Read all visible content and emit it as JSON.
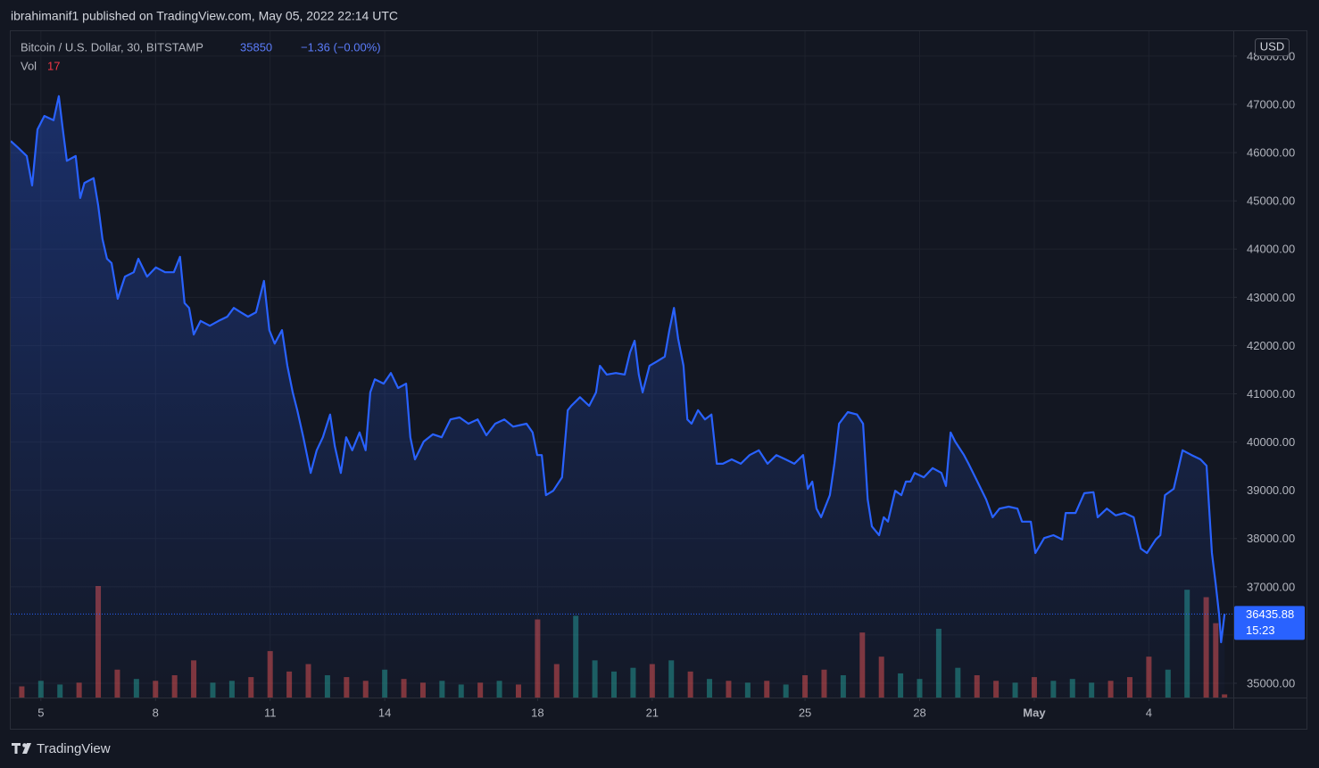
{
  "published": "ibrahimanif1 published on TradingView.com, May 05, 2022 22:14 UTC",
  "brand": "TradingView",
  "chart_data": {
    "type": "area",
    "title": "Bitcoin / U.S. Dollar, 30, BITSTAMP",
    "change": "−1.36 (−0.00%)",
    "countdown": "15:23",
    "currency": "USD",
    "grid": true,
    "xlim": [
      4.21,
      36.21
    ],
    "xticks": [
      5,
      8,
      11,
      14,
      18,
      21,
      25,
      28,
      {
        "value": 31,
        "label": "May"
      },
      {
        "value": 34,
        "label": "4"
      }
    ],
    "ylim": [
      34704,
      48516
    ],
    "yticks": [
      {
        "value": 35000,
        "label": "35000.00"
      },
      {
        "value": 36000,
        "label": "36000.00"
      },
      {
        "value": 37000,
        "label": "37000.00"
      },
      {
        "value": 38000,
        "label": "38000.00"
      },
      {
        "value": 39000,
        "label": "39000.00"
      },
      {
        "value": 40000,
        "label": "40000.00"
      },
      {
        "value": 41000,
        "label": "41000.00"
      },
      {
        "value": 42000,
        "label": "42000.00"
      },
      {
        "value": 43000,
        "label": "43000.00"
      },
      {
        "value": 44000,
        "label": "44000.00"
      },
      {
        "value": 45000,
        "label": "45000.00"
      },
      {
        "value": 46000,
        "label": "46000.00"
      },
      {
        "value": 47000,
        "label": "47000.00"
      },
      {
        "value": 48000,
        "label": "48000.00"
      }
    ],
    "x": [
      4.21,
      4.39,
      4.63,
      4.77,
      4.91,
      5.09,
      5.33,
      5.47,
      5.56,
      5.68,
      5.91,
      6.03,
      6.14,
      6.38,
      6.5,
      6.61,
      6.73,
      6.85,
      7.01,
      7.2,
      7.43,
      7.55,
      7.78,
      8.01,
      8.25,
      8.48,
      8.64,
      8.76,
      8.88,
      9.0,
      9.18,
      9.42,
      9.65,
      9.88,
      10.05,
      10.23,
      10.42,
      10.63,
      10.84,
      10.98,
      11.12,
      11.31,
      11.45,
      11.59,
      11.71,
      11.87,
      12.06,
      12.22,
      12.38,
      12.57,
      12.69,
      12.85,
      12.99,
      13.15,
      13.34,
      13.5,
      13.62,
      13.74,
      13.97,
      14.16,
      14.35,
      14.56,
      14.67,
      14.79,
      15.02,
      15.26,
      15.49,
      15.72,
      15.96,
      16.19,
      16.43,
      16.66,
      16.89,
      17.13,
      17.36,
      17.71,
      17.87,
      17.99,
      18.11,
      18.22,
      18.41,
      18.64,
      18.79,
      18.88,
      19.11,
      19.35,
      19.53,
      19.63,
      19.81,
      20.05,
      20.28,
      20.42,
      20.54,
      20.65,
      20.75,
      20.93,
      21.12,
      21.33,
      21.45,
      21.57,
      21.68,
      21.82,
      21.92,
      22.03,
      22.2,
      22.38,
      22.55,
      22.69,
      22.85,
      23.08,
      23.32,
      23.55,
      23.79,
      24.02,
      24.25,
      24.49,
      24.72,
      24.95,
      25.07,
      25.19,
      25.3,
      25.42,
      25.65,
      25.77,
      25.89,
      26.12,
      26.36,
      26.52,
      26.64,
      26.75,
      26.94,
      27.06,
      27.17,
      27.36,
      27.52,
      27.64,
      27.76,
      27.87,
      28.11,
      28.34,
      28.57,
      28.69,
      28.81,
      28.93,
      29.16,
      29.28,
      29.51,
      29.74,
      29.91,
      30.09,
      30.33,
      30.56,
      30.68,
      30.91,
      31.03,
      31.26,
      31.5,
      31.73,
      31.82,
      31.96,
      32.08,
      32.31,
      32.55,
      32.66,
      32.9,
      33.13,
      33.36,
      33.6,
      33.79,
      33.95,
      34.18,
      34.3,
      34.42,
      34.65,
      34.88,
      35.12,
      35.35,
      35.51,
      35.65,
      35.75,
      35.84,
      35.89,
      35.98
    ],
    "series": [
      {
        "color": "#2962ff",
        "values": [
          46240,
          46110,
          45930,
          45320,
          46480,
          46760,
          46670,
          47170,
          46570,
          45830,
          45930,
          45060,
          45370,
          45470,
          44910,
          44210,
          43800,
          43710,
          42970,
          43430,
          43520,
          43800,
          43430,
          43620,
          43520,
          43520,
          43840,
          42880,
          42780,
          42230,
          42510,
          42410,
          42510,
          42600,
          42780,
          42690,
          42600,
          42690,
          43340,
          42320,
          42040,
          42320,
          41580,
          41030,
          40660,
          40100,
          39360,
          39830,
          40100,
          40570,
          39920,
          39360,
          40100,
          39830,
          40200,
          39830,
          41030,
          41300,
          41210,
          41430,
          41120,
          41210,
          40100,
          39640,
          40010,
          40160,
          40100,
          40470,
          40510,
          40380,
          40470,
          40140,
          40380,
          40470,
          40320,
          40380,
          40200,
          39730,
          39730,
          38900,
          38990,
          39270,
          40660,
          40750,
          40930,
          40750,
          41030,
          41580,
          41400,
          41430,
          41400,
          41860,
          42100,
          41400,
          41030,
          41580,
          41670,
          41770,
          42320,
          42780,
          42140,
          41580,
          40470,
          40380,
          40660,
          40470,
          40570,
          39550,
          39550,
          39640,
          39550,
          39730,
          39830,
          39550,
          39730,
          39640,
          39550,
          39730,
          39030,
          39180,
          38620,
          38440,
          38900,
          39550,
          40380,
          40620,
          40570,
          40380,
          38810,
          38250,
          38070,
          38440,
          38350,
          38990,
          38900,
          39180,
          39180,
          39360,
          39270,
          39460,
          39360,
          39090,
          40200,
          40010,
          39730,
          39550,
          39180,
          38810,
          38440,
          38620,
          38660,
          38620,
          38350,
          38350,
          37700,
          38010,
          38070,
          37980,
          38530,
          38530,
          38530,
          38940,
          38960,
          38440,
          38620,
          38480,
          38530,
          38440,
          37790,
          37700,
          37980,
          38070,
          38900,
          39030,
          39830,
          39730,
          39640,
          39510,
          37700,
          37050,
          36400,
          35850,
          36435.88
        ]
      }
    ],
    "volume": {
      "name": "Vol",
      "up_color": "#26a69a",
      "down_color": "#ef5350",
      "x": [
        4.5,
        5.0,
        5.5,
        6.0,
        6.5,
        7.0,
        7.5,
        8.0,
        8.5,
        9.0,
        9.5,
        10.0,
        10.5,
        11.0,
        11.5,
        12.0,
        12.5,
        13.0,
        13.5,
        14.0,
        14.5,
        15.0,
        15.5,
        16.0,
        16.5,
        17.0,
        17.5,
        18.0,
        18.5,
        19.0,
        19.5,
        20.0,
        20.5,
        21.0,
        21.5,
        22.0,
        22.5,
        23.0,
        23.5,
        24.0,
        24.5,
        25.0,
        25.5,
        26.0,
        26.5,
        27.0,
        27.5,
        28.0,
        28.5,
        29.0,
        29.5,
        30.0,
        30.5,
        31.0,
        31.5,
        32.0,
        32.5,
        33.0,
        33.5,
        34.0,
        34.5,
        35.0,
        35.5,
        35.75,
        35.98
      ],
      "values": [
        60,
        90,
        70,
        80,
        600,
        150,
        100,
        90,
        120,
        200,
        80,
        90,
        110,
        250,
        140,
        180,
        120,
        110,
        90,
        150,
        100,
        80,
        90,
        70,
        80,
        90,
        70,
        420,
        180,
        440,
        200,
        140,
        160,
        180,
        200,
        140,
        100,
        90,
        80,
        90,
        70,
        120,
        150,
        120,
        350,
        220,
        130,
        100,
        370,
        160,
        120,
        90,
        80,
        110,
        90,
        100,
        80,
        90,
        110,
        220,
        150,
        580,
        540,
        400,
        17
      ]
    }
  }
}
